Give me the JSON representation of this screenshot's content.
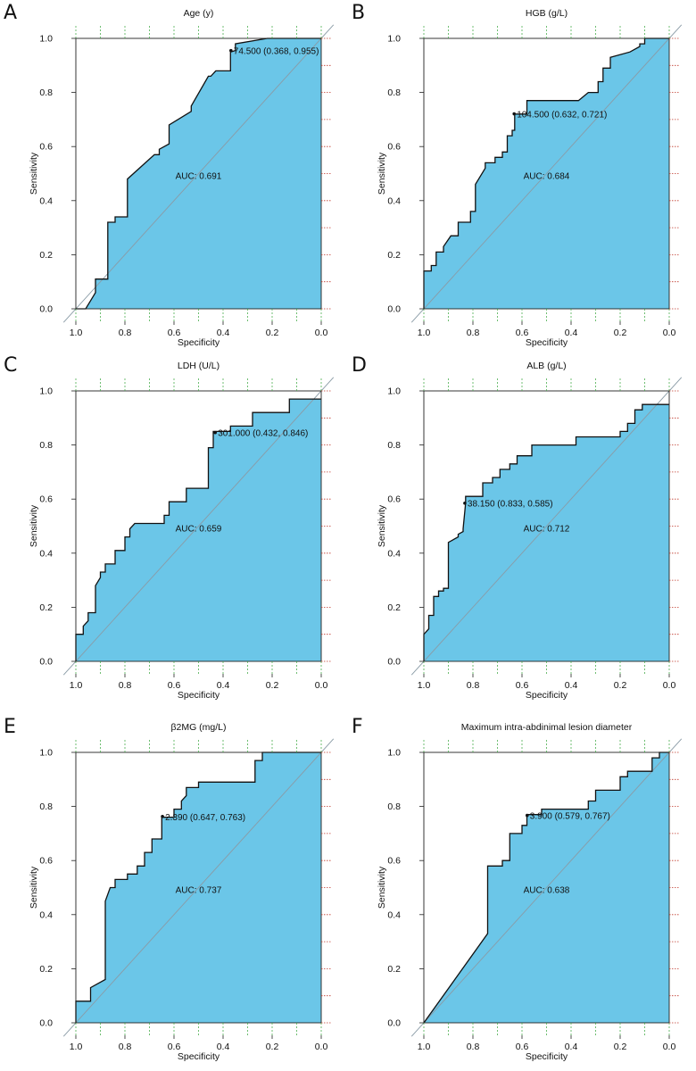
{
  "colors": {
    "fill": "#6BC6E8",
    "curve": "#111111",
    "diagonal": "#8A9BA6",
    "grid_vertical": "#4CAF50",
    "grid_horizontal": "#C0392B",
    "axis": "#222222"
  },
  "chart_data": [
    {
      "panel": "A",
      "type": "line",
      "title": "Age (y)",
      "xlabel": "Specificity",
      "ylabel": "Sensitivity",
      "xlim": [
        1.0,
        0.0
      ],
      "ylim": [
        0.0,
        1.0
      ],
      "x_ticks": [
        "1.0",
        "0.8",
        "0.6",
        "0.4",
        "0.2",
        "0.0"
      ],
      "y_ticks": [
        "0.0",
        "0.2",
        "0.4",
        "0.6",
        "0.8",
        "1.0"
      ],
      "grid": true,
      "auc_label": "AUC: 0.691",
      "threshold_label": "74.500 (0.368, 0.955)",
      "threshold_point": [
        0.368,
        0.955
      ],
      "x": [
        1.0,
        0.96,
        0.94,
        0.92,
        0.92,
        0.87,
        0.87,
        0.84,
        0.84,
        0.79,
        0.79,
        0.68,
        0.66,
        0.66,
        0.62,
        0.62,
        0.53,
        0.53,
        0.46,
        0.45,
        0.43,
        0.37,
        0.37,
        0.35,
        0.35,
        0.22,
        0.0,
        0.0
      ],
      "y": [
        0.0,
        0.0,
        0.03,
        0.06,
        0.11,
        0.11,
        0.32,
        0.32,
        0.34,
        0.34,
        0.48,
        0.57,
        0.57,
        0.59,
        0.61,
        0.68,
        0.73,
        0.75,
        0.86,
        0.86,
        0.88,
        0.88,
        0.95,
        0.955,
        0.98,
        1.0,
        1.0,
        0.0
      ]
    },
    {
      "panel": "B",
      "type": "line",
      "title": "HGB (g/L)",
      "xlabel": "Specificity",
      "ylabel": "Sensitivity",
      "xlim": [
        1.0,
        0.0
      ],
      "ylim": [
        0.0,
        1.0
      ],
      "x_ticks": [
        "1.0",
        "0.8",
        "0.6",
        "0.4",
        "0.2",
        "0.0"
      ],
      "y_ticks": [
        "0.0",
        "0.2",
        "0.4",
        "0.6",
        "0.8",
        "1.0"
      ],
      "grid": true,
      "auc_label": "AUC: 0.684",
      "threshold_label": "104.500 (0.632, 0.721)",
      "threshold_point": [
        0.632,
        0.721
      ],
      "x": [
        1.0,
        1.0,
        0.97,
        0.97,
        0.95,
        0.95,
        0.92,
        0.92,
        0.89,
        0.86,
        0.86,
        0.81,
        0.81,
        0.79,
        0.79,
        0.75,
        0.75,
        0.71,
        0.71,
        0.68,
        0.68,
        0.66,
        0.66,
        0.64,
        0.64,
        0.63,
        0.63,
        0.58,
        0.58,
        0.37,
        0.33,
        0.29,
        0.29,
        0.27,
        0.27,
        0.24,
        0.24,
        0.16,
        0.16,
        0.12,
        0.12,
        0.1,
        0.1,
        0.0,
        0.0
      ],
      "y": [
        0.0,
        0.14,
        0.14,
        0.16,
        0.16,
        0.21,
        0.21,
        0.23,
        0.27,
        0.27,
        0.32,
        0.32,
        0.36,
        0.36,
        0.46,
        0.52,
        0.54,
        0.54,
        0.56,
        0.56,
        0.58,
        0.58,
        0.64,
        0.64,
        0.66,
        0.66,
        0.72,
        0.72,
        0.77,
        0.77,
        0.8,
        0.8,
        0.84,
        0.84,
        0.89,
        0.89,
        0.93,
        0.95,
        0.95,
        0.97,
        0.98,
        0.98,
        1.0,
        1.0,
        0.0
      ]
    },
    {
      "panel": "C",
      "type": "line",
      "title": "LDH (U/L)",
      "xlabel": "Specificity",
      "ylabel": "Sensitivity",
      "xlim": [
        1.0,
        0.0
      ],
      "ylim": [
        0.0,
        1.0
      ],
      "x_ticks": [
        "1.0",
        "0.8",
        "0.6",
        "0.4",
        "0.2",
        "0.0"
      ],
      "y_ticks": [
        "0.0",
        "0.2",
        "0.4",
        "0.6",
        "0.8",
        "1.0"
      ],
      "grid": true,
      "auc_label": "AUC: 0.659",
      "threshold_label": "301.000 (0.432, 0.846)",
      "threshold_point": [
        0.432,
        0.846
      ],
      "x": [
        1.0,
        1.0,
        0.97,
        0.97,
        0.95,
        0.95,
        0.92,
        0.92,
        0.9,
        0.9,
        0.88,
        0.88,
        0.84,
        0.84,
        0.8,
        0.8,
        0.78,
        0.78,
        0.76,
        0.75,
        0.73,
        0.73,
        0.64,
        0.64,
        0.62,
        0.62,
        0.56,
        0.56,
        0.55,
        0.55,
        0.46,
        0.46,
        0.44,
        0.44,
        0.37,
        0.37,
        0.28,
        0.28,
        0.13,
        0.13,
        0.0,
        0.0
      ],
      "y": [
        0.0,
        0.1,
        0.1,
        0.13,
        0.15,
        0.18,
        0.18,
        0.28,
        0.31,
        0.33,
        0.33,
        0.36,
        0.36,
        0.41,
        0.41,
        0.46,
        0.46,
        0.49,
        0.51,
        0.51,
        0.51,
        0.51,
        0.51,
        0.54,
        0.54,
        0.59,
        0.59,
        0.59,
        0.59,
        0.64,
        0.64,
        0.79,
        0.79,
        0.85,
        0.85,
        0.87,
        0.87,
        0.92,
        0.92,
        0.97,
        0.97,
        0.0
      ]
    },
    {
      "panel": "D",
      "type": "line",
      "title": "ALB (g/L)",
      "xlabel": "Specificity",
      "ylabel": "Sensitivity",
      "xlim": [
        1.0,
        0.0
      ],
      "ylim": [
        0.0,
        1.0
      ],
      "x_ticks": [
        "1.0",
        "0.8",
        "0.6",
        "0.4",
        "0.2",
        "0.0"
      ],
      "y_ticks": [
        "0.0",
        "0.2",
        "0.4",
        "0.6",
        "0.8",
        "1.0"
      ],
      "grid": true,
      "auc_label": "AUC: 0.712",
      "threshold_label": "38.150 (0.833, 0.585)",
      "threshold_point": [
        0.833,
        0.585
      ],
      "x": [
        1.0,
        1.0,
        0.98,
        0.98,
        0.96,
        0.96,
        0.94,
        0.94,
        0.92,
        0.92,
        0.9,
        0.9,
        0.86,
        0.86,
        0.84,
        0.84,
        0.83,
        0.83,
        0.76,
        0.76,
        0.72,
        0.72,
        0.69,
        0.69,
        0.65,
        0.65,
        0.62,
        0.62,
        0.56,
        0.56,
        0.38,
        0.38,
        0.2,
        0.2,
        0.17,
        0.17,
        0.14,
        0.14,
        0.11,
        0.11,
        0.0,
        0.0
      ],
      "y": [
        0.0,
        0.1,
        0.12,
        0.17,
        0.17,
        0.24,
        0.24,
        0.26,
        0.26,
        0.27,
        0.27,
        0.44,
        0.46,
        0.47,
        0.48,
        0.49,
        0.585,
        0.61,
        0.61,
        0.66,
        0.66,
        0.68,
        0.68,
        0.71,
        0.71,
        0.73,
        0.73,
        0.76,
        0.76,
        0.8,
        0.8,
        0.83,
        0.83,
        0.85,
        0.85,
        0.88,
        0.88,
        0.93,
        0.93,
        0.95,
        0.95,
        0.0
      ]
    },
    {
      "panel": "E",
      "type": "line",
      "title": "β2MG (mg/L)",
      "xlabel": "Specificity",
      "ylabel": "Sensitivity",
      "xlim": [
        1.0,
        0.0
      ],
      "ylim": [
        0.0,
        1.0
      ],
      "x_ticks": [
        "1.0",
        "0.8",
        "0.6",
        "0.4",
        "0.2",
        "0.0"
      ],
      "y_ticks": [
        "0.0",
        "0.2",
        "0.4",
        "0.6",
        "0.8",
        "1.0"
      ],
      "grid": true,
      "auc_label": "AUC: 0.737",
      "threshold_label": "2.390 (0.647, 0.763)",
      "threshold_point": [
        0.647,
        0.763
      ],
      "x": [
        1.0,
        1.0,
        0.94,
        0.94,
        0.88,
        0.88,
        0.86,
        0.84,
        0.84,
        0.79,
        0.79,
        0.75,
        0.75,
        0.72,
        0.72,
        0.69,
        0.69,
        0.65,
        0.65,
        0.6,
        0.6,
        0.57,
        0.57,
        0.55,
        0.55,
        0.5,
        0.5,
        0.27,
        0.27,
        0.24,
        0.24,
        0.0,
        0.0
      ],
      "y": [
        0.0,
        0.08,
        0.08,
        0.13,
        0.16,
        0.45,
        0.5,
        0.5,
        0.53,
        0.53,
        0.55,
        0.55,
        0.58,
        0.58,
        0.63,
        0.63,
        0.68,
        0.68,
        0.76,
        0.76,
        0.79,
        0.79,
        0.82,
        0.84,
        0.87,
        0.87,
        0.89,
        0.89,
        0.97,
        0.97,
        1.0,
        1.0,
        0.0
      ]
    },
    {
      "panel": "F",
      "type": "line",
      "title": "Maximum intra-abdinimal lesion diameter",
      "xlabel": "Specificity",
      "ylabel": "Sensitivity",
      "xlim": [
        1.0,
        0.0
      ],
      "ylim": [
        0.0,
        1.0
      ],
      "x_ticks": [
        "1.0",
        "0.8",
        "0.6",
        "0.4",
        "0.2",
        "0.0"
      ],
      "y_ticks": [
        "0.0",
        "0.2",
        "0.4",
        "0.6",
        "0.8",
        "1.0"
      ],
      "grid": true,
      "auc_label": "AUC: 0.638",
      "threshold_label": "3.900 (0.579, 0.767)",
      "threshold_point": [
        0.579,
        0.767
      ],
      "x": [
        1.0,
        0.74,
        0.74,
        0.68,
        0.68,
        0.65,
        0.65,
        0.6,
        0.6,
        0.58,
        0.58,
        0.52,
        0.52,
        0.33,
        0.33,
        0.3,
        0.3,
        0.23,
        0.23,
        0.2,
        0.2,
        0.17,
        0.17,
        0.07,
        0.07,
        0.04,
        0.04,
        0.0,
        0.0
      ],
      "y": [
        0.0,
        0.33,
        0.58,
        0.58,
        0.6,
        0.6,
        0.7,
        0.7,
        0.73,
        0.73,
        0.77,
        0.77,
        0.79,
        0.79,
        0.82,
        0.82,
        0.86,
        0.86,
        0.86,
        0.86,
        0.91,
        0.91,
        0.93,
        0.93,
        0.98,
        0.98,
        1.0,
        1.0,
        0.0
      ]
    }
  ]
}
